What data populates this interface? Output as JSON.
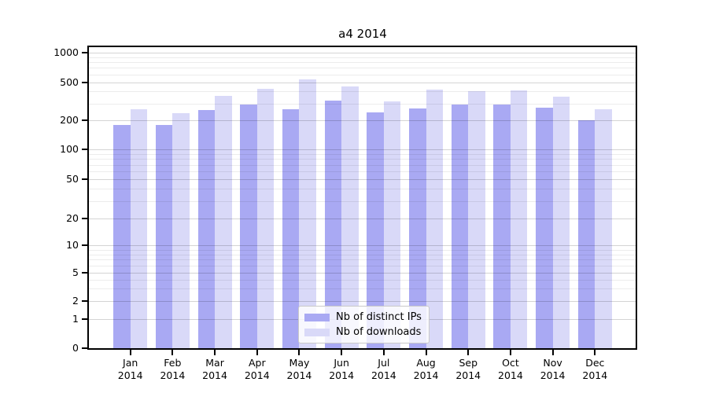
{
  "title": "a4 2014",
  "chart_data": {
    "type": "bar",
    "title": "a4 2014",
    "categories": [
      "Jan",
      "Feb",
      "Mar",
      "Apr",
      "May",
      "Jun",
      "Jul",
      "Aug",
      "Sep",
      "Oct",
      "Nov",
      "Dec"
    ],
    "category_year": "2014",
    "series": [
      {
        "name": "Nb of distinct IPs",
        "color": "#a9a9f3",
        "values": [
          180,
          180,
          255,
          290,
          260,
          320,
          240,
          265,
          290,
          295,
          270,
          200
        ]
      },
      {
        "name": "Nb of downloads",
        "color": "#d9d9f8",
        "values": [
          260,
          235,
          360,
          430,
          535,
          450,
          315,
          420,
          405,
          415,
          355,
          260
        ]
      }
    ],
    "y_axis": {
      "scale": "symlog",
      "ticks": [
        1000,
        500,
        200,
        100,
        50,
        20,
        10,
        5,
        2,
        1,
        0
      ],
      "tick_labels": [
        "1000",
        "500",
        "200",
        "100",
        "50",
        "20",
        "10",
        "5",
        "2",
        "1",
        "0"
      ],
      "range": [
        0,
        1300
      ]
    },
    "x_axis": {
      "tick_line1": [
        "Jan",
        "Feb",
        "Mar",
        "Apr",
        "May",
        "Jun",
        "Jul",
        "Aug",
        "Sep",
        "Oct",
        "Nov",
        "Dec"
      ],
      "tick_line2": "2014"
    },
    "legend": {
      "position": "lower center",
      "entries": [
        "Nb of distinct IPs",
        "Nb of downloads"
      ]
    },
    "grid": true
  }
}
